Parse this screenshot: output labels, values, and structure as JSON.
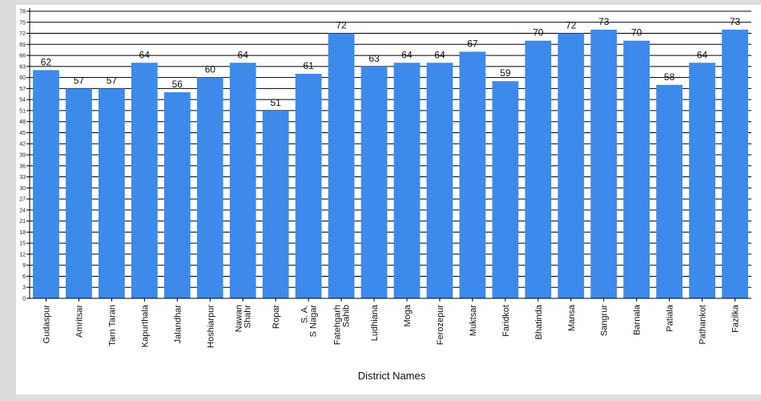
{
  "chart_data": {
    "type": "bar",
    "title": "",
    "xlabel": "District Names",
    "ylabel": "",
    "ylim": [
      0,
      78
    ],
    "ytick_step": 3,
    "grid": true,
    "legend": "none",
    "bar_color": "#3d8aeb",
    "categories": [
      [
        "Gudaspur"
      ],
      [
        "Amritsar"
      ],
      [
        "Tarn Taran"
      ],
      [
        "Kapurthala"
      ],
      [
        "Jalandhar"
      ],
      [
        "Hoshiarpur"
      ],
      [
        "Nawan",
        "Shahr"
      ],
      [
        "Ropar"
      ],
      [
        "S. A.",
        "S Nagar"
      ],
      [
        "Fatehgarh",
        "Sahib"
      ],
      [
        "Ludhiana"
      ],
      [
        "Moga"
      ],
      [
        "Ferozepur"
      ],
      [
        "Muktsar"
      ],
      [
        "Faridkot"
      ],
      [
        "Bhatinda"
      ],
      [
        "Mansa"
      ],
      [
        "Sangrur"
      ],
      [
        "Barnala"
      ],
      [
        "Patiala"
      ],
      [
        "Pathankot"
      ],
      [
        "Fazilka"
      ]
    ],
    "values": [
      62,
      57,
      57,
      64,
      56,
      60,
      64,
      51,
      61,
      72,
      63,
      64,
      64,
      67,
      59,
      70,
      72,
      73,
      70,
      58,
      64,
      73
    ]
  }
}
